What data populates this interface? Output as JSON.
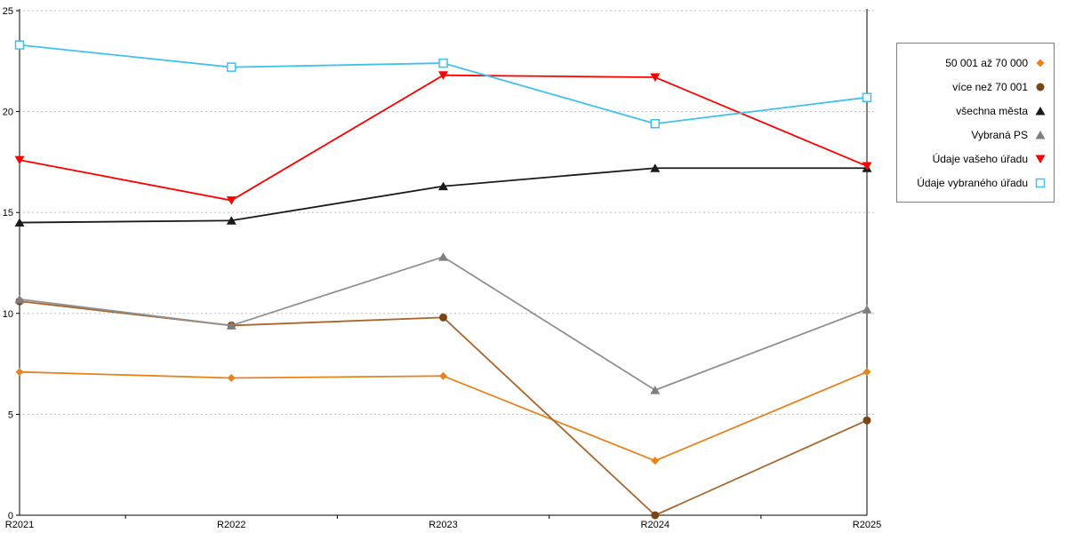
{
  "chart_data": {
    "type": "line",
    "title": "",
    "xlabel": "",
    "ylabel": "",
    "x": [
      "R2021",
      "R2022",
      "R2023",
      "R2024",
      "R2025"
    ],
    "ylim": [
      0,
      25
    ],
    "yticks": [
      0,
      5,
      10,
      15,
      20,
      25
    ],
    "grid": "horizontal-dotted",
    "legend_position": "right",
    "series": [
      {
        "name": "50 001 až 70 000",
        "marker": "diamond",
        "color": "#E8821E",
        "values": [
          7.1,
          6.8,
          6.9,
          2.7,
          7.1
        ]
      },
      {
        "name": "více než 70 001",
        "marker": "circle",
        "color": "#A9652B",
        "marker_color": "#7A4515",
        "values": [
          10.6,
          9.4,
          9.8,
          0.0,
          4.7
        ]
      },
      {
        "name": "všechna města",
        "marker": "triangle-up",
        "color": "#1A1A1A",
        "values": [
          14.5,
          14.6,
          16.3,
          17.2,
          17.2
        ]
      },
      {
        "name": "Vybraná PS",
        "marker": "triangle-up",
        "color": "#909090",
        "marker_color": "#7F7F7F",
        "values": [
          10.7,
          9.4,
          12.8,
          6.2,
          10.2
        ]
      },
      {
        "name": "Údaje vašeho úřadu",
        "marker": "triangle-down",
        "color": "#FF0000",
        "values": [
          17.6,
          15.6,
          21.8,
          21.7,
          17.3
        ]
      },
      {
        "name": "Údaje vybraného úřadu",
        "marker": "square-open",
        "color": "#3FC1F0",
        "values": [
          23.3,
          22.2,
          22.4,
          19.4,
          20.7
        ]
      }
    ],
    "colors": {
      "gridline": "#BFBFBF",
      "axis": "#000000",
      "tick_label": "#000000"
    }
  }
}
